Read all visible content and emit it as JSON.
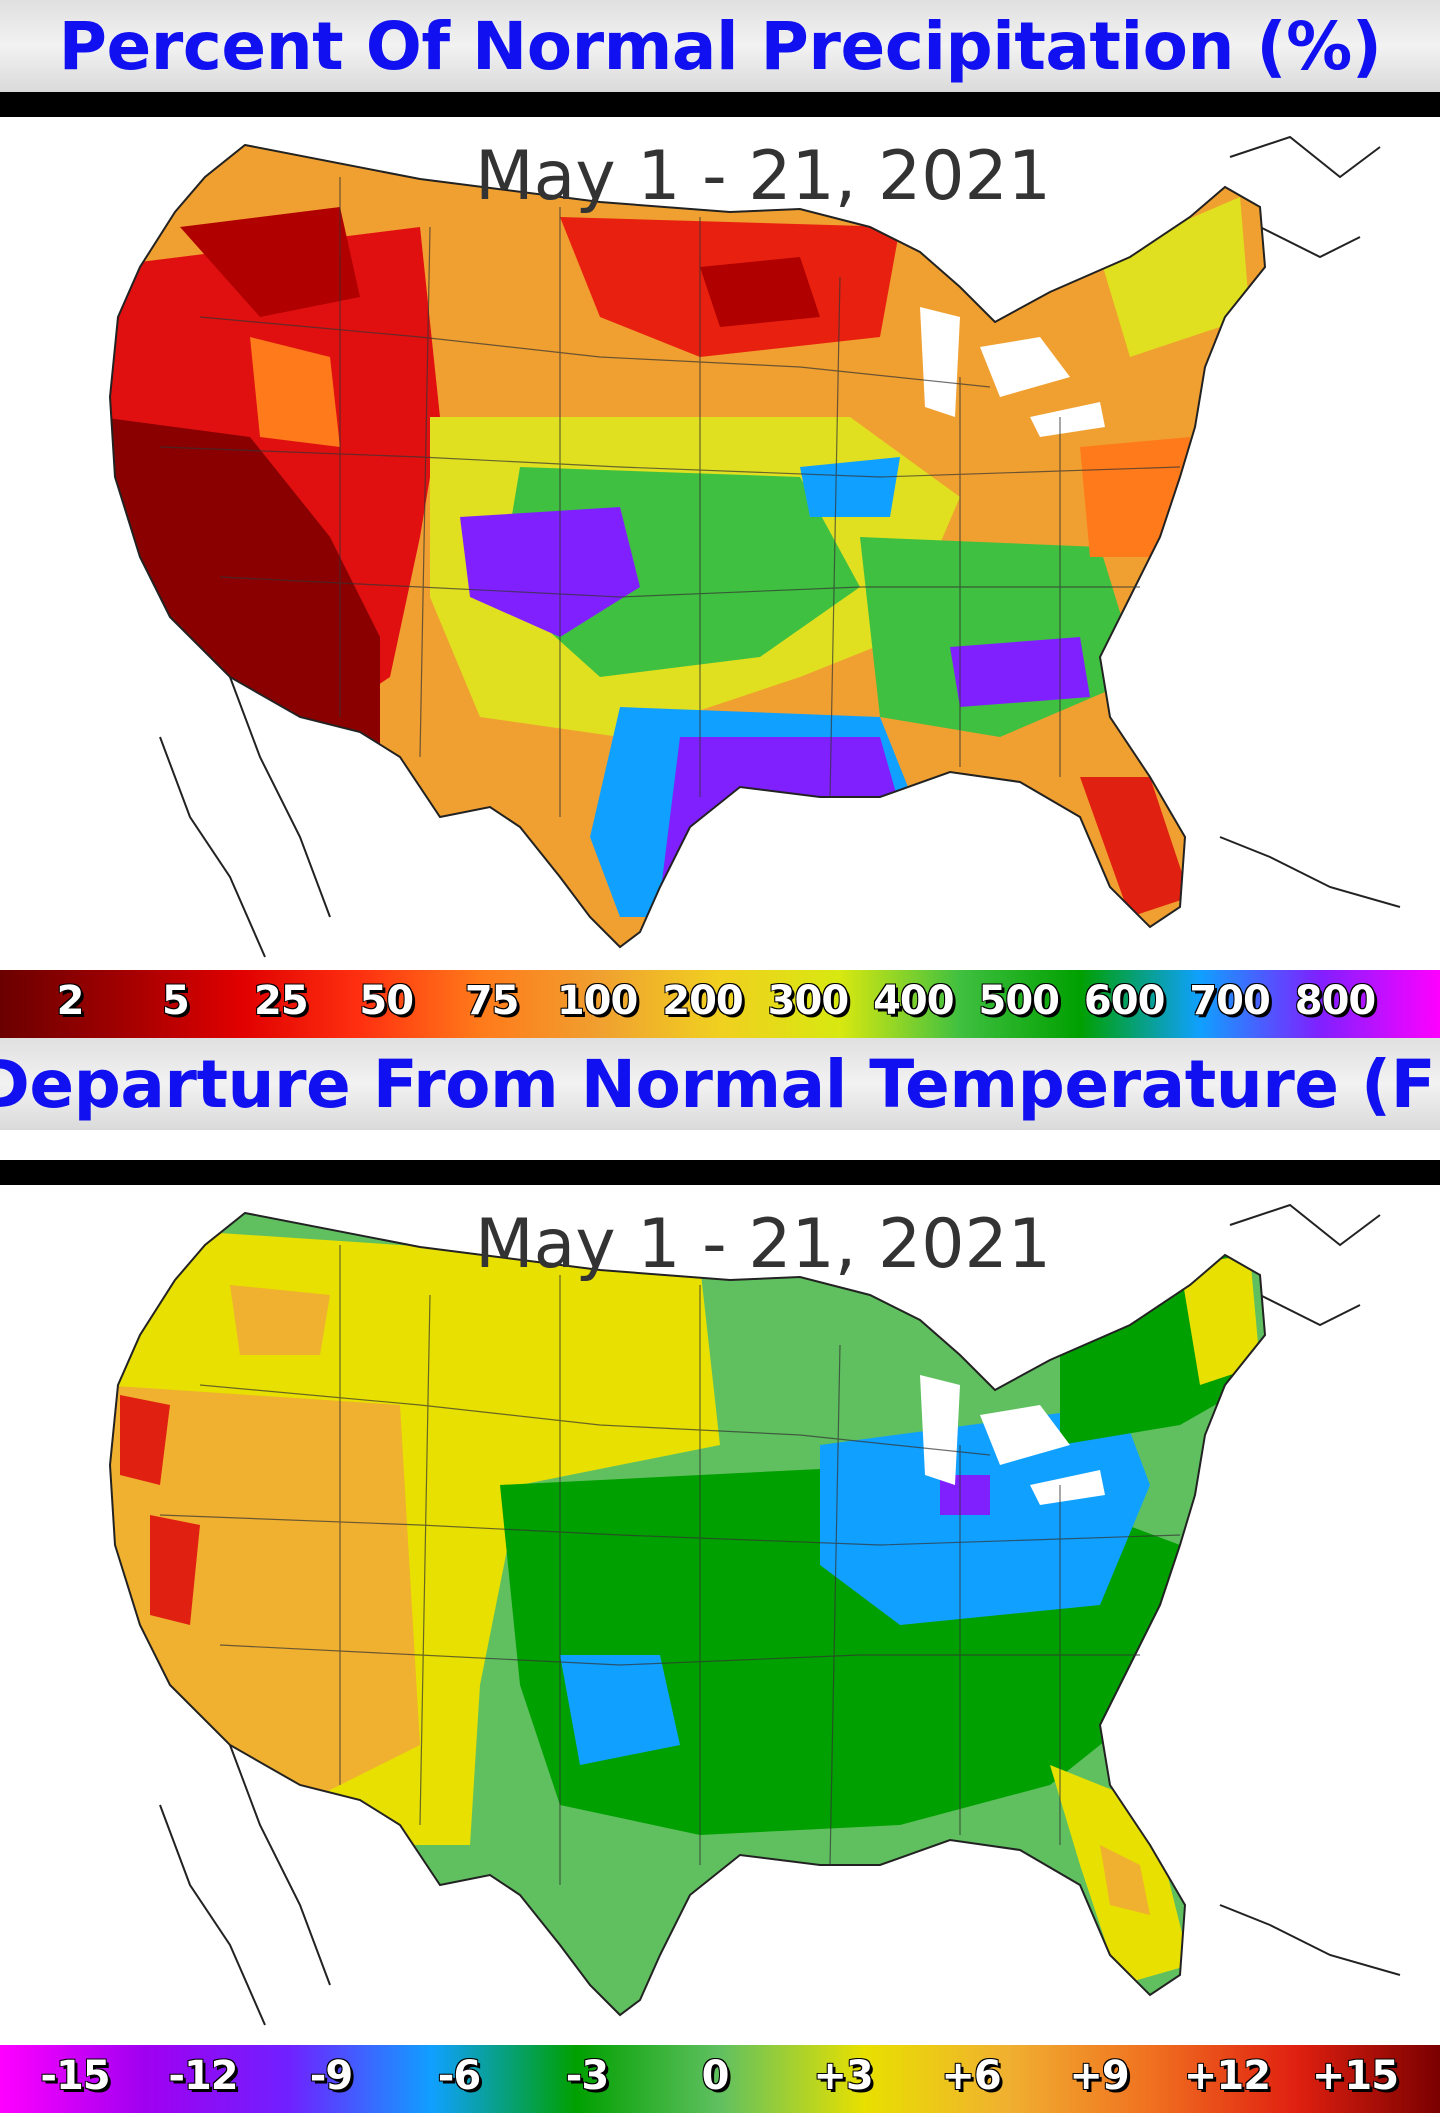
{
  "precipitation_panel": {
    "title": "Percent Of Normal Precipitation (%)",
    "date_range": "May 1 - 21, 2021",
    "colorbar": {
      "labels": [
        "2",
        "5",
        "25",
        "50",
        "75",
        "100",
        "200",
        "300",
        "400",
        "500",
        "600",
        "700",
        "800"
      ],
      "colors": [
        "#6b0000",
        "#a00000",
        "#e00000",
        "#ff3010",
        "#ff7a1a",
        "#f0a030",
        "#f0d020",
        "#d8e810",
        "#40c040",
        "#00a000",
        "#10a0ff",
        "#8020ff",
        "#ff00ff"
      ]
    }
  },
  "temperature_panel": {
    "title": "Departure From Normal Temperature (F)",
    "date_range": "May 1 - 21, 2021",
    "colorbar": {
      "labels": [
        "-15",
        "-12",
        "-9",
        "-6",
        "-3",
        "0",
        "+3",
        "+6",
        "+9",
        "+12",
        "+15"
      ],
      "colors": [
        "#ff00ff",
        "#a000f0",
        "#7020ff",
        "#10a0ff",
        "#00a000",
        "#60c060",
        "#e8e000",
        "#f0b030",
        "#f07020",
        "#e02010",
        "#7a0000"
      ]
    }
  }
}
